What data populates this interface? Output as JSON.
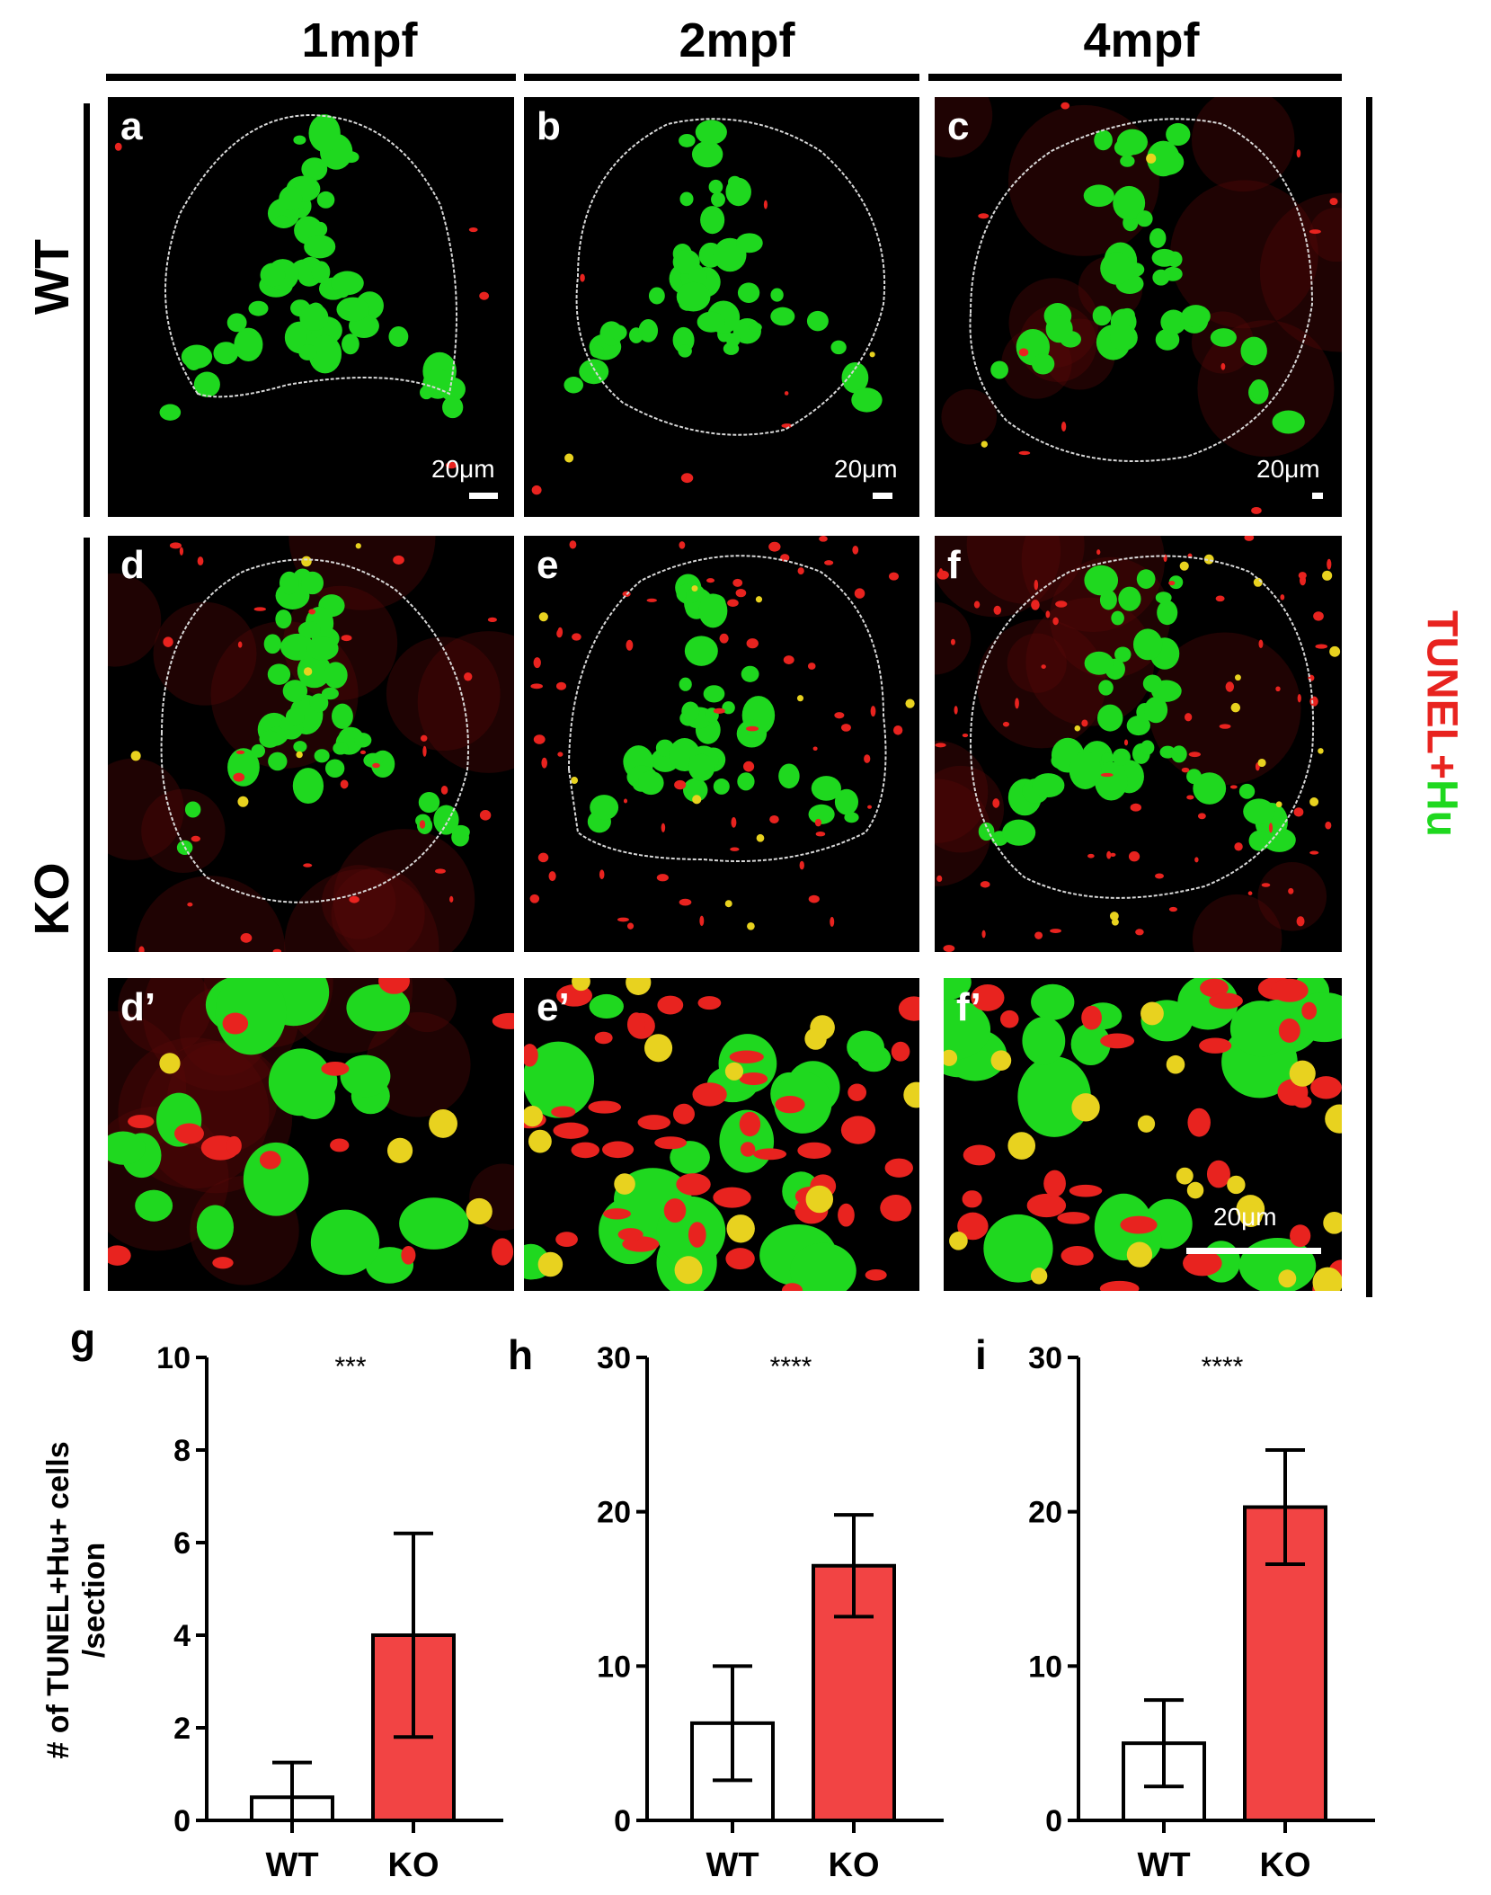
{
  "columns": [
    "1mpf",
    "2mpf",
    "4mpf"
  ],
  "rows": [
    "WT",
    "KO"
  ],
  "legend": {
    "part1": "TUNEL",
    "part2": "+",
    "part3": "Hu"
  },
  "colors": {
    "tunel": "#e8231f",
    "hu": "#1fd81f",
    "ko_bar": "#f24444",
    "wt_bar": "#ffffff"
  },
  "panels": [
    {
      "label": "a",
      "scale": "20μm"
    },
    {
      "label": "b",
      "scale": "20μm"
    },
    {
      "label": "c",
      "scale": "20μm"
    },
    {
      "label": "d",
      "scale": ""
    },
    {
      "label": "e",
      "scale": ""
    },
    {
      "label": "f",
      "scale": ""
    },
    {
      "label": "d’",
      "scale": ""
    },
    {
      "label": "e’",
      "scale": ""
    },
    {
      "label": "f’",
      "scale": "20μm"
    }
  ],
  "y_axis_label": {
    "line1": "# of TUNEL+Hu+ cells",
    "line2": "/section"
  },
  "chart_data": [
    {
      "type": "bar",
      "panel": "g",
      "categories": [
        "WT",
        "KO"
      ],
      "values": [
        0.5,
        4.0
      ],
      "errors": [
        0.75,
        2.2
      ],
      "ylim": [
        0,
        10
      ],
      "yticks": [
        0,
        2,
        4,
        6,
        8,
        10
      ],
      "significance": "***"
    },
    {
      "type": "bar",
      "panel": "h",
      "categories": [
        "WT",
        "KO"
      ],
      "values": [
        6.3,
        16.5
      ],
      "errors": [
        3.7,
        3.3
      ],
      "ylim": [
        0,
        30
      ],
      "yticks": [
        0,
        10,
        20,
        30
      ],
      "significance": "****"
    },
    {
      "type": "bar",
      "panel": "i",
      "categories": [
        "WT",
        "KO"
      ],
      "values": [
        5.0,
        20.3
      ],
      "errors": [
        2.8,
        3.7
      ],
      "ylim": [
        0,
        30
      ],
      "yticks": [
        0,
        10,
        20,
        30
      ],
      "significance": "****"
    }
  ]
}
